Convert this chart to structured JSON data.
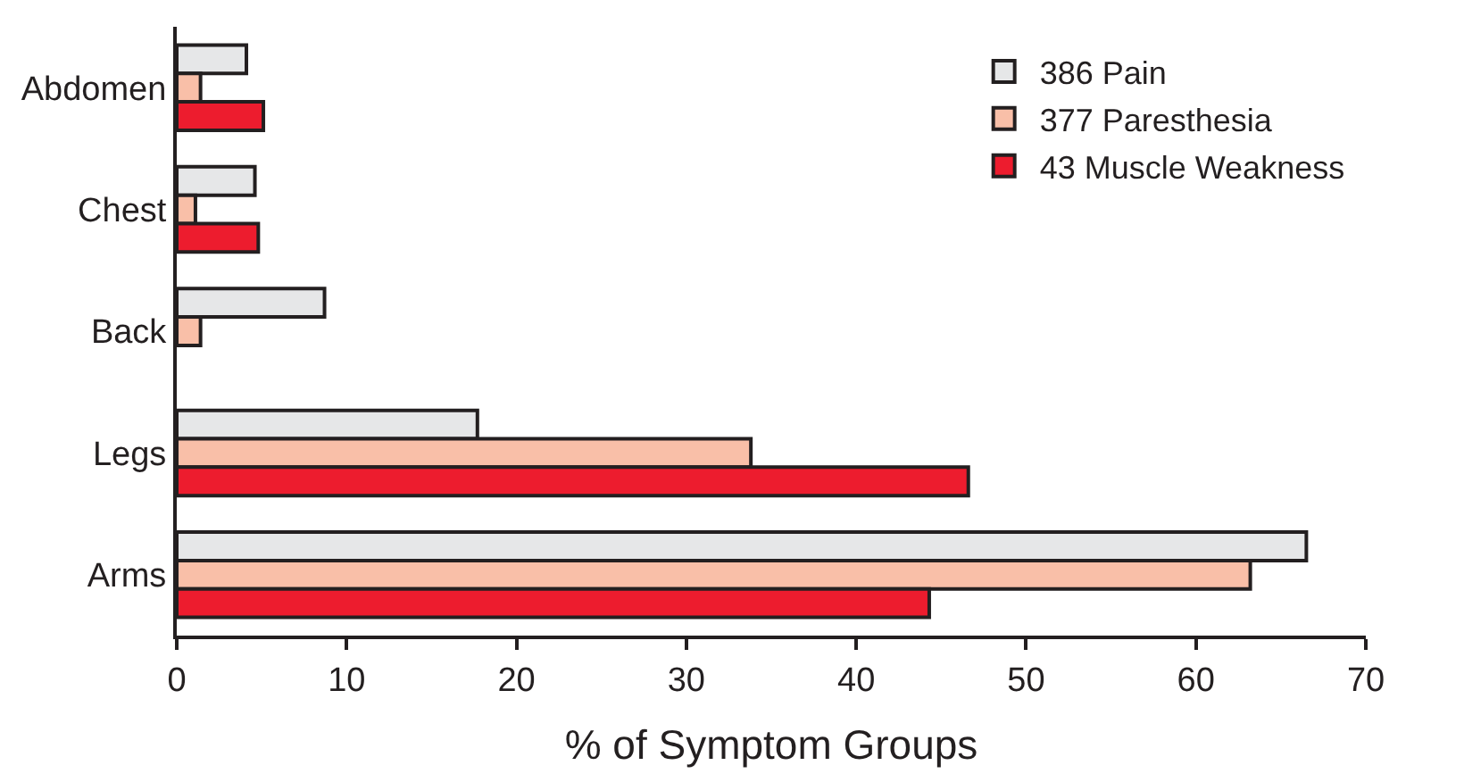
{
  "chart_data": {
    "type": "bar",
    "orientation": "horizontal",
    "xlabel": "% of Symptom Groups",
    "categories": [
      "Abdomen",
      "Chest",
      "Back",
      "Legs",
      "Arms"
    ],
    "series": [
      {
        "name": "386 Pain",
        "color": "#e6e7e8",
        "values": [
          4.1,
          4.6,
          8.7,
          17.7,
          66.5
        ]
      },
      {
        "name": "377 Paresthesia",
        "color": "#f9bfa8",
        "values": [
          1.4,
          1.1,
          1.4,
          33.8,
          63.2
        ]
      },
      {
        "name": "43 Muscle Weakness",
        "color": "#ed1c2e",
        "values": [
          5.1,
          4.8,
          null,
          46.6,
          44.3
        ]
      }
    ],
    "xlim": [
      0,
      70
    ],
    "xticks": [
      0,
      10,
      20,
      30,
      40,
      50,
      60,
      70
    ],
    "legend": "top right"
  }
}
